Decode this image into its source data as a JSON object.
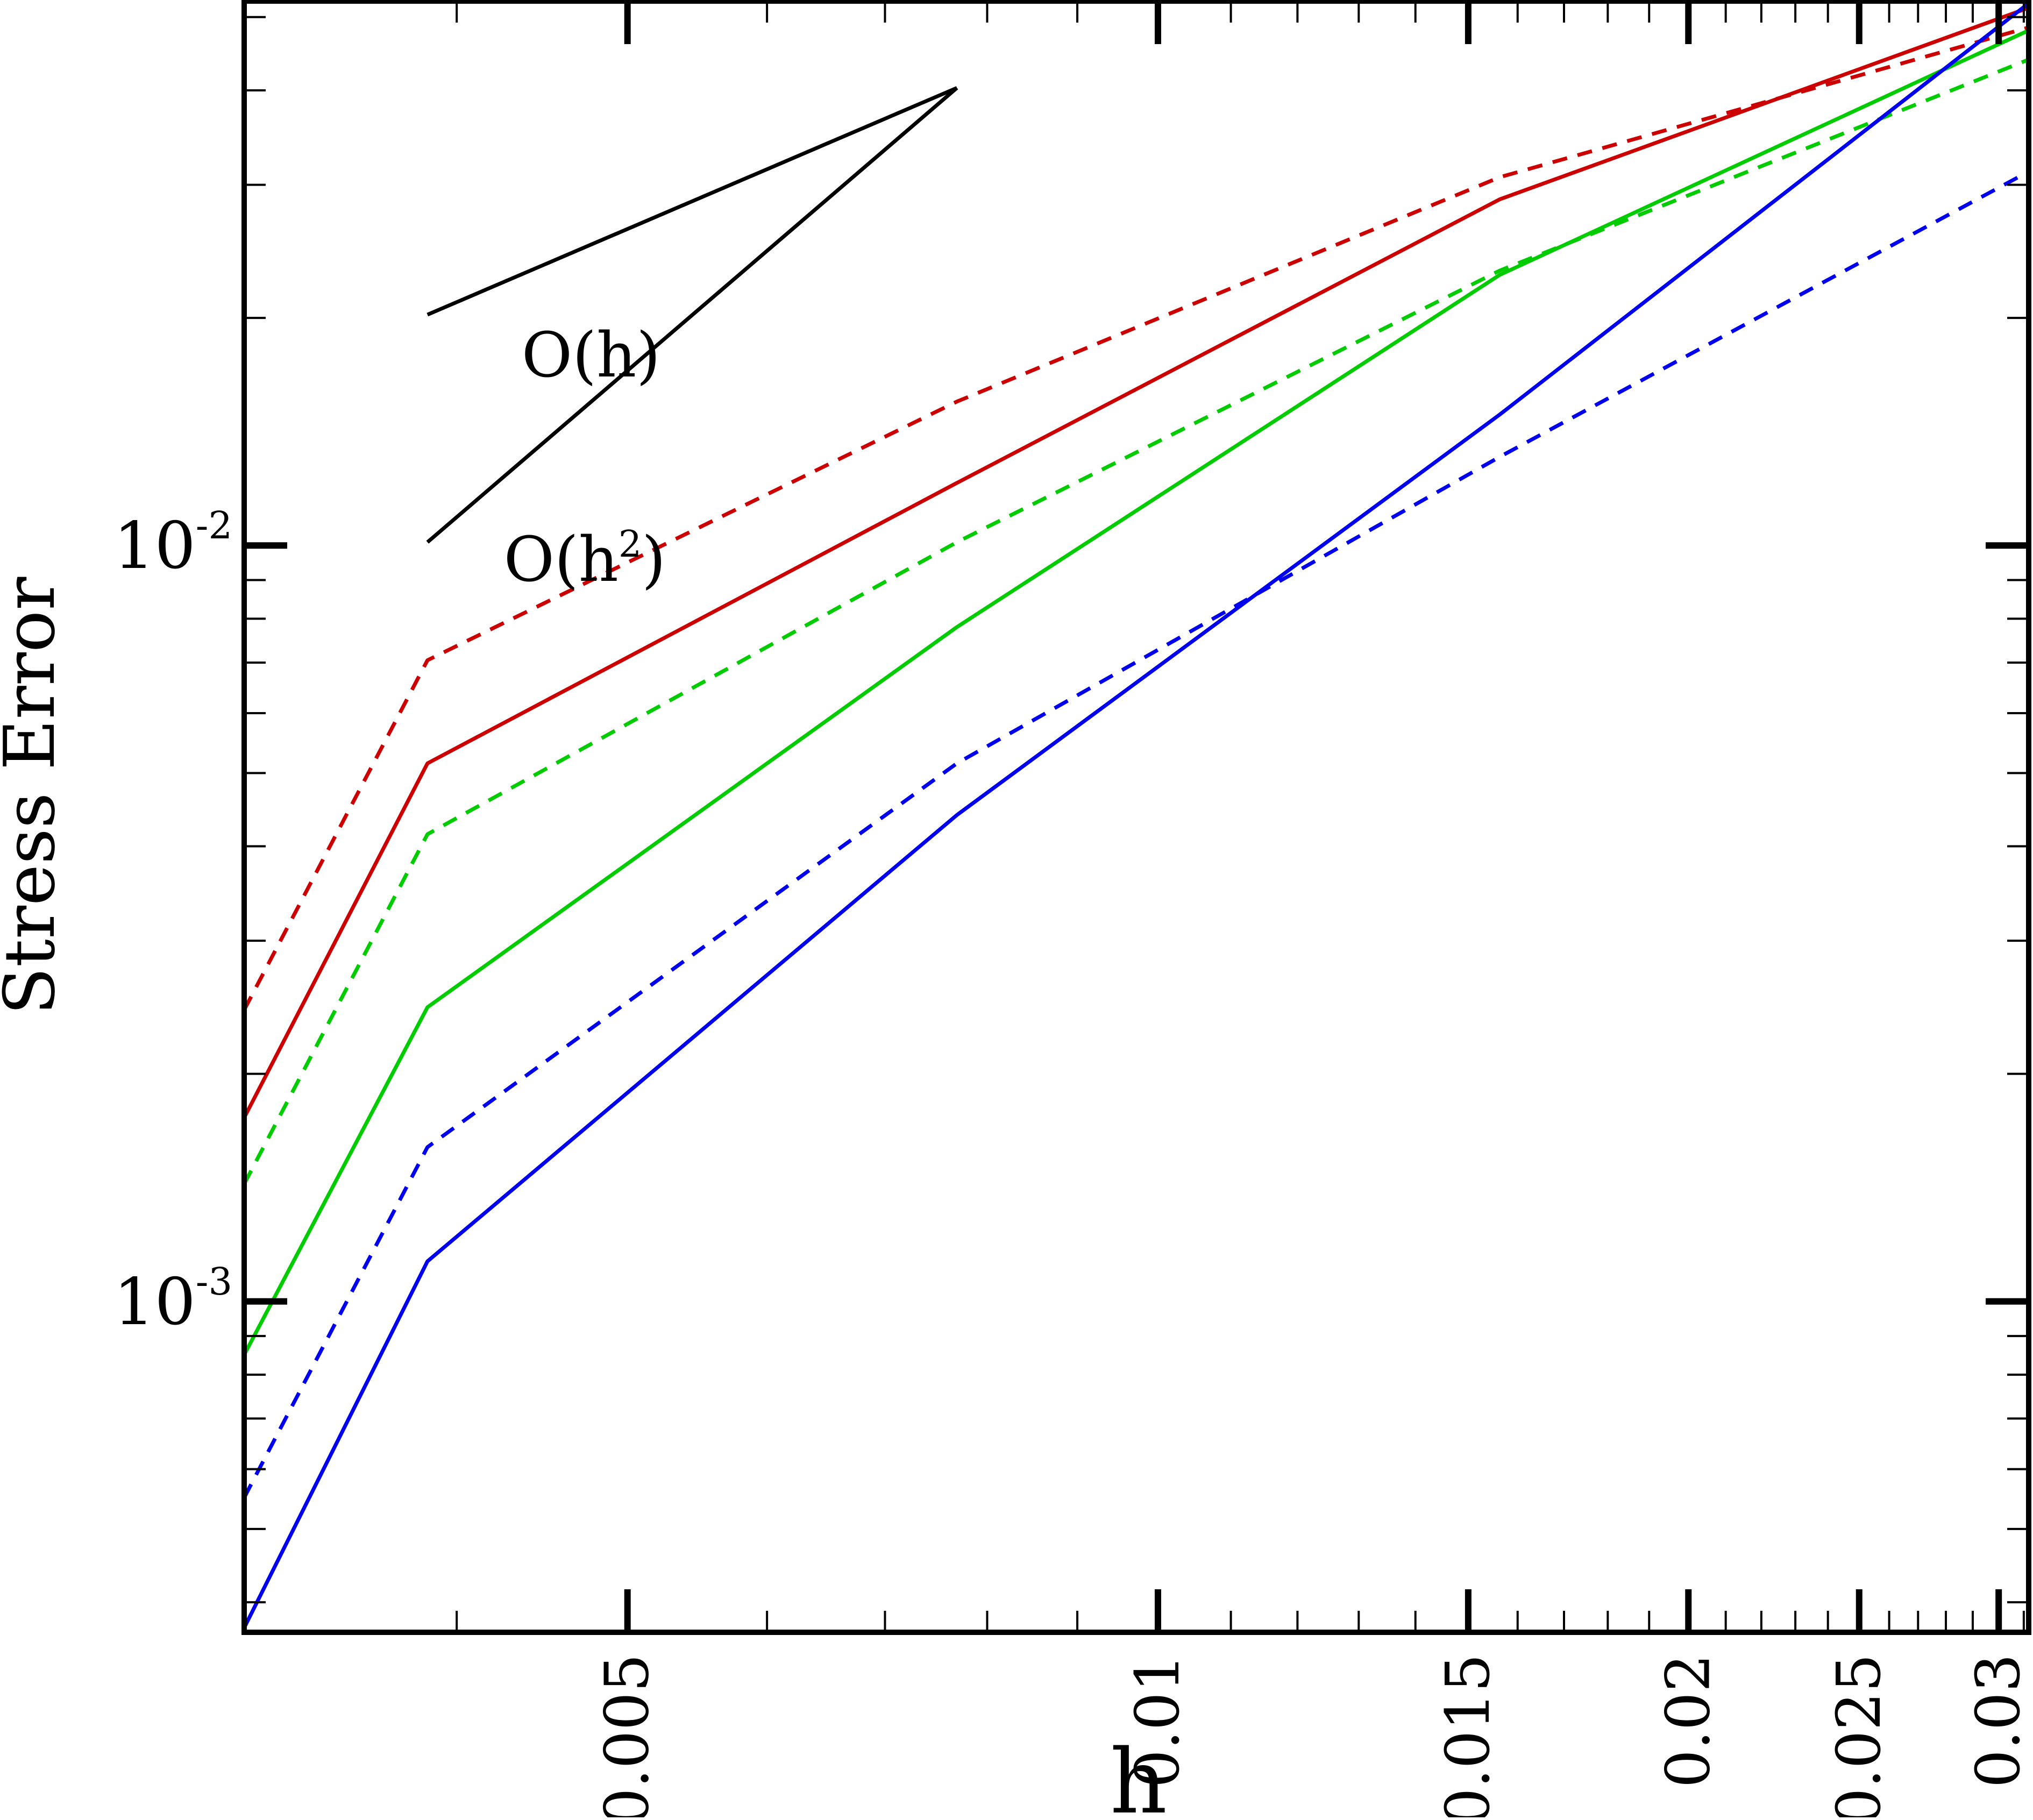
{
  "chart_data": {
    "type": "line",
    "title": "",
    "xlabel": "h",
    "ylabel": "Stress Error",
    "x_scale": "log",
    "y_scale": "log",
    "xlim": [
      0.00303,
      0.0312
    ],
    "ylim": [
      0.000365,
      0.0525
    ],
    "grid": false,
    "legend": "none",
    "x_ticks": [
      {
        "value": 0.005,
        "label": "0.005"
      },
      {
        "value": 0.01,
        "label": "0.01"
      },
      {
        "value": 0.015,
        "label": "0.015"
      },
      {
        "value": 0.02,
        "label": "0.02"
      },
      {
        "value": 0.025,
        "label": "0.025"
      },
      {
        "value": 0.03,
        "label": "0.03"
      }
    ],
    "y_ticks": [
      {
        "value": 0.01,
        "base": "10",
        "exp": "-2"
      },
      {
        "value": 0.001,
        "base": "10",
        "exp": "-3"
      }
    ],
    "series": [
      {
        "color": "#cc0000",
        "style": "solid",
        "x": [
          0.00303,
          0.00385,
          0.00769,
          0.01563,
          0.03125
        ],
        "y": [
          0.00175,
          0.00515,
          0.0121,
          0.0287,
          0.0515
        ]
      },
      {
        "color": "#cc0000",
        "style": "dashed",
        "x": [
          0.00303,
          0.00385,
          0.00769,
          0.01563,
          0.03125
        ],
        "y": [
          0.00243,
          0.00705,
          0.0155,
          0.0307,
          0.0485
        ]
      },
      {
        "color": "#00cc00",
        "style": "solid",
        "x": [
          0.00303,
          0.00385,
          0.00769,
          0.01563,
          0.03125
        ],
        "y": [
          0.00085,
          0.00245,
          0.0078,
          0.0228,
          0.0481
        ]
      },
      {
        "color": "#00cc00",
        "style": "dashed",
        "x": [
          0.00303,
          0.00385,
          0.00769,
          0.01563,
          0.03125
        ],
        "y": [
          0.00143,
          0.00415,
          0.0101,
          0.0231,
          0.044
        ]
      },
      {
        "color": "#0000ee",
        "style": "solid",
        "x": [
          0.00303,
          0.00385,
          0.00769,
          0.01563,
          0.03125
        ],
        "y": [
          0.00037,
          0.00113,
          0.0044,
          0.0149,
          0.0523
        ]
      },
      {
        "color": "#0000ee",
        "style": "dashed",
        "x": [
          0.00303,
          0.00385,
          0.00769,
          0.01563,
          0.03125
        ],
        "y": [
          0.00055,
          0.0016,
          0.00515,
          0.0131,
          0.0313
        ]
      }
    ],
    "annotations": [
      {
        "text": "O(h)"
      },
      {
        "text": "O(h",
        "superscript": "2",
        "suffix": ")"
      }
    ],
    "reference_slopes": {
      "x": [
        0.00385,
        0.00769
      ],
      "O_h": [
        0.0202,
        0.0403
      ],
      "O_h2": [
        0.0101,
        0.0403
      ]
    }
  }
}
